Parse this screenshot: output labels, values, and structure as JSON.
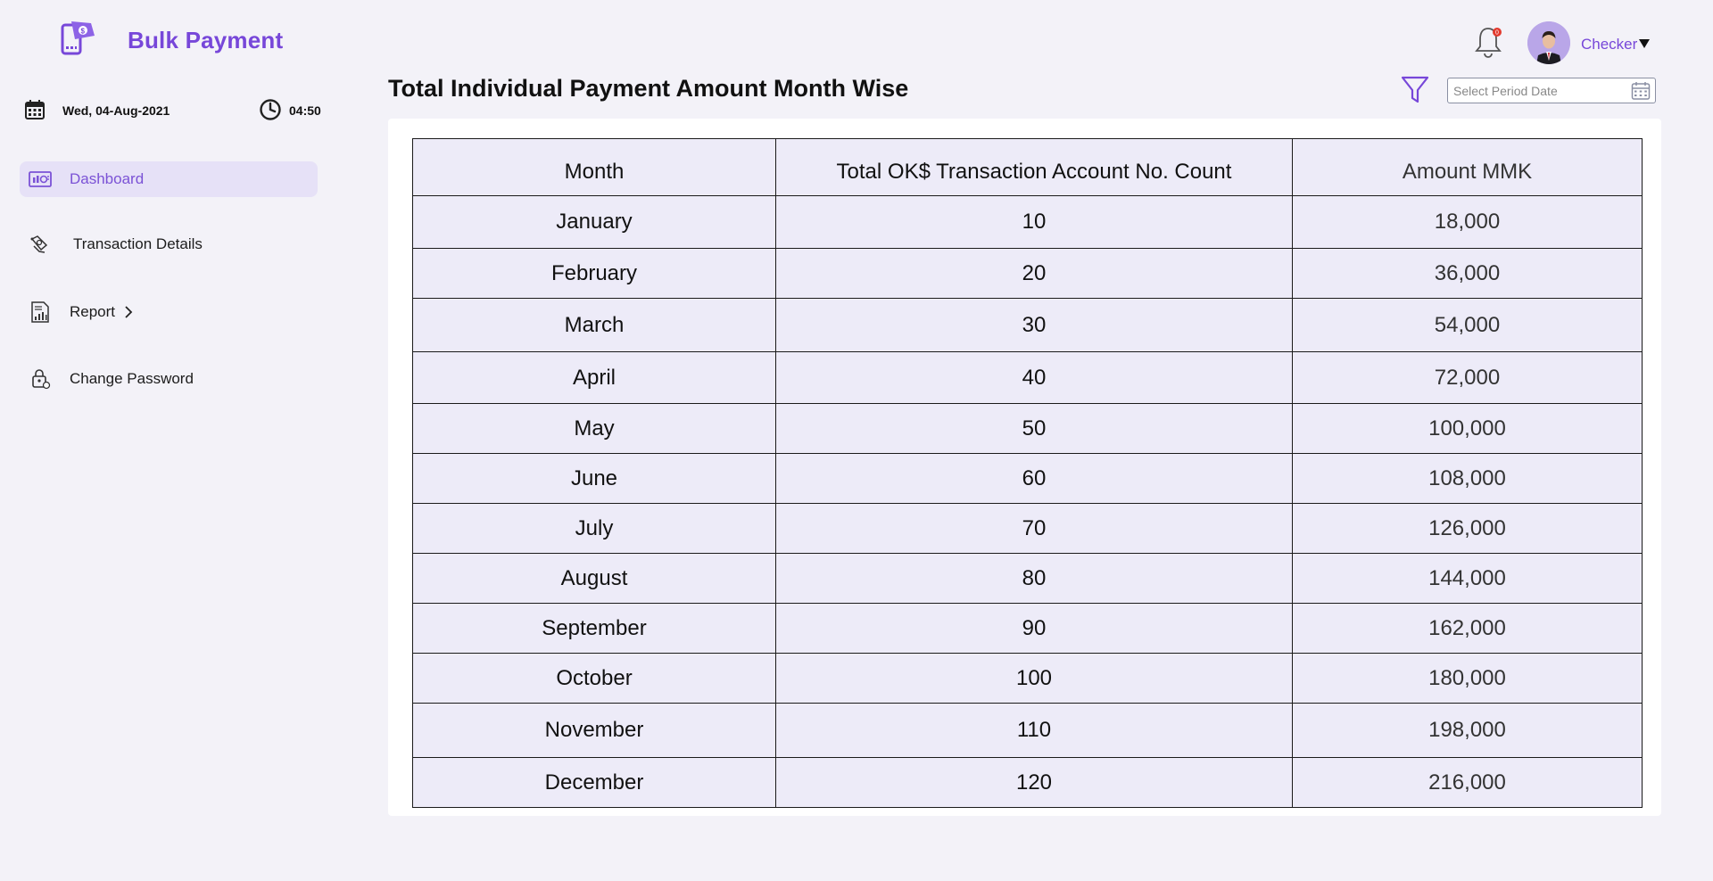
{
  "app": {
    "title": "Bulk Payment"
  },
  "datetime": {
    "date": "Wed, 04-Aug-2021",
    "time": "04:50"
  },
  "sidebar": {
    "items": [
      {
        "label": "Dashboard",
        "icon": "dashboard-icon",
        "active": true
      },
      {
        "label": "Transaction Details",
        "icon": "transaction-icon"
      },
      {
        "label": "Report",
        "icon": "report-icon"
      },
      {
        "label": "Change Password",
        "icon": "lock-icon"
      }
    ]
  },
  "header": {
    "notification_count": "0",
    "user_name": "Checker"
  },
  "main": {
    "title": "Total Individual Payment Amount Month Wise",
    "period_placeholder": "Select Period Date"
  },
  "table": {
    "columns": [
      "Month",
      "Total OK$ Transaction Account No. Count",
      "Amount MMK"
    ],
    "rows": [
      [
        "January",
        "10",
        "18,000"
      ],
      [
        "February",
        "20",
        "36,000"
      ],
      [
        "March",
        "30",
        "54,000"
      ],
      [
        "April",
        "40",
        "72,000"
      ],
      [
        "May",
        "50",
        "100,000"
      ],
      [
        "June",
        "60",
        "108,000"
      ],
      [
        "July",
        "70",
        "126,000"
      ],
      [
        "August",
        "80",
        "144,000"
      ],
      [
        "September",
        "90",
        "162,000"
      ],
      [
        "October",
        "100",
        "180,000"
      ],
      [
        "November",
        "110",
        "198,000"
      ],
      [
        "December",
        "120",
        "216,000"
      ]
    ]
  },
  "colors": {
    "accent": "#7747d9",
    "background": "#f3f2f8",
    "table_bg": "#edebf8",
    "active_nav": "#e6e1f7"
  }
}
